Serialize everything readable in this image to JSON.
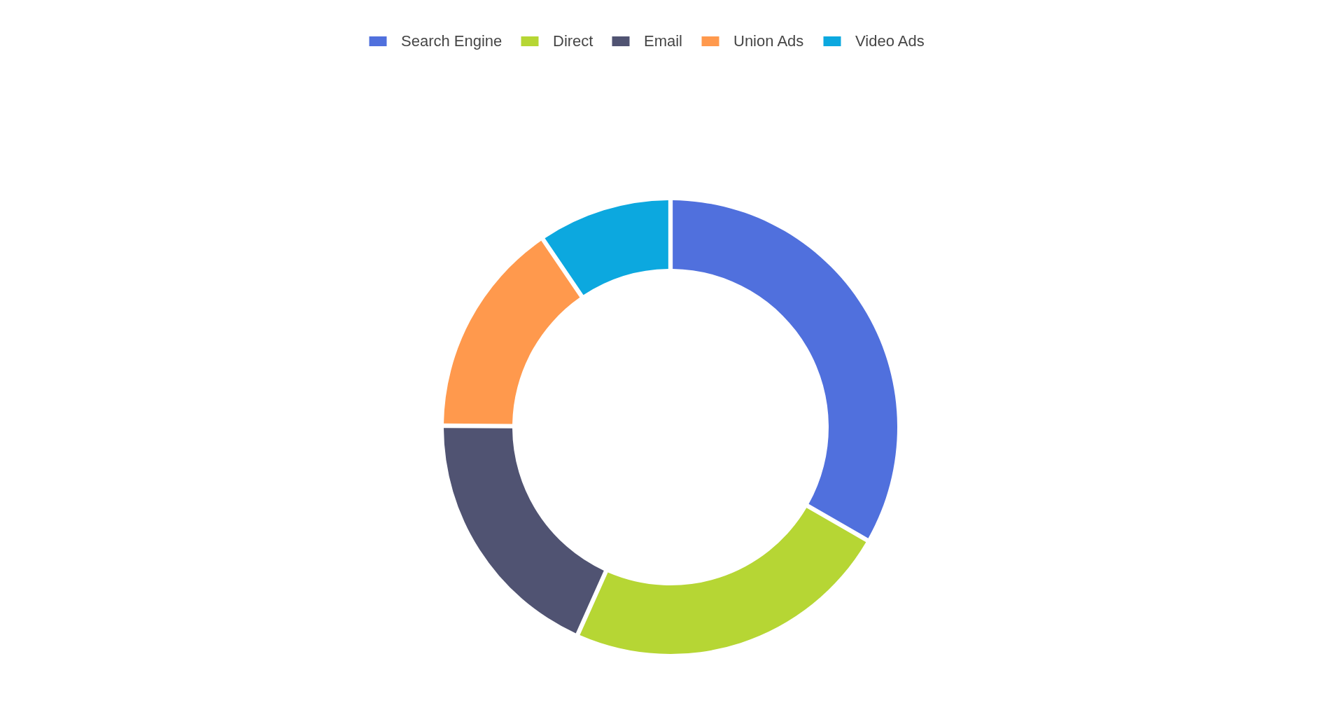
{
  "chart_data": {
    "type": "donut",
    "categories": [
      "Search Engine",
      "Direct",
      "Email",
      "Union Ads",
      "Video Ads"
    ],
    "values": [
      33.3,
      23.4,
      18.4,
      15.4,
      9.5
    ],
    "colors": [
      "#5070dd",
      "#b6d634",
      "#505372",
      "#ff994d",
      "#0ca8df"
    ],
    "legend": "top"
  }
}
